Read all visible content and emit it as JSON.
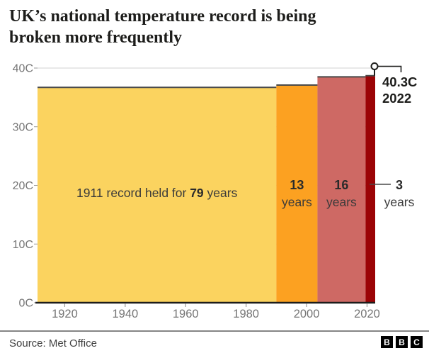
{
  "title": {
    "lines": [
      "UK’s national temperature record is being",
      "broken more frequently"
    ]
  },
  "footer": {
    "source": "Source: Met Office",
    "logo_letters": [
      "B",
      "B",
      "C"
    ]
  },
  "colors": {
    "grid": "#d2d2d2",
    "axis": "#1d1d1b",
    "tick": "#9a9a9a",
    "tick_label": "#757575",
    "bar_outline": "#4a4a4a",
    "bar_label": "#3a3a3a",
    "bar_label_bold": "#2b2b2b",
    "annotation": "#1d1d1b",
    "connector": "#4a4a4a",
    "marker_fill": "#ffffff"
  },
  "chart_data": {
    "type": "bar",
    "title": "UK’s national temperature record is being broken more frequently",
    "x_axis": {
      "ticks": [
        1920,
        1940,
        1960,
        1980,
        2000,
        2020
      ],
      "range": [
        1911,
        2022.7
      ],
      "unit": "year"
    },
    "y_axis": {
      "ticks": [
        0,
        10,
        20,
        30,
        40
      ],
      "tick_suffix": "C",
      "range": [
        0,
        40
      ],
      "grid": true
    },
    "records": [
      {
        "record_year": 1911,
        "temp_c": 36.7,
        "years_held": 79,
        "held_from": 1911,
        "held_until": 1990,
        "color": "#fbd35f",
        "label_segments": [
          {
            "text": "1911 record held for ",
            "bold": false
          },
          {
            "text": "79",
            "bold": true
          },
          {
            "text": " years",
            "bold": false
          }
        ]
      },
      {
        "record_year": 1990,
        "temp_c": 37.1,
        "years_held": 13,
        "held_from": 1990,
        "held_until": 2003.6,
        "color": "#fca121",
        "label_lines": [
          "13",
          "years"
        ]
      },
      {
        "record_year": 2003,
        "temp_c": 38.5,
        "years_held": 16,
        "held_from": 2003.6,
        "held_until": 2019.5,
        "color": "#ce6964",
        "label_lines": [
          "16",
          "years"
        ]
      },
      {
        "record_year": 2019,
        "temp_c": 38.7,
        "years_held": 3,
        "held_from": 2019.5,
        "held_until": 2022.7,
        "color": "#9b0406",
        "label_lines": [
          "3",
          "years"
        ],
        "label_outside": true
      }
    ],
    "current_record": {
      "year": 2022,
      "temp_c": 40.3,
      "label_lines": [
        "40.3C",
        "2022"
      ]
    }
  }
}
